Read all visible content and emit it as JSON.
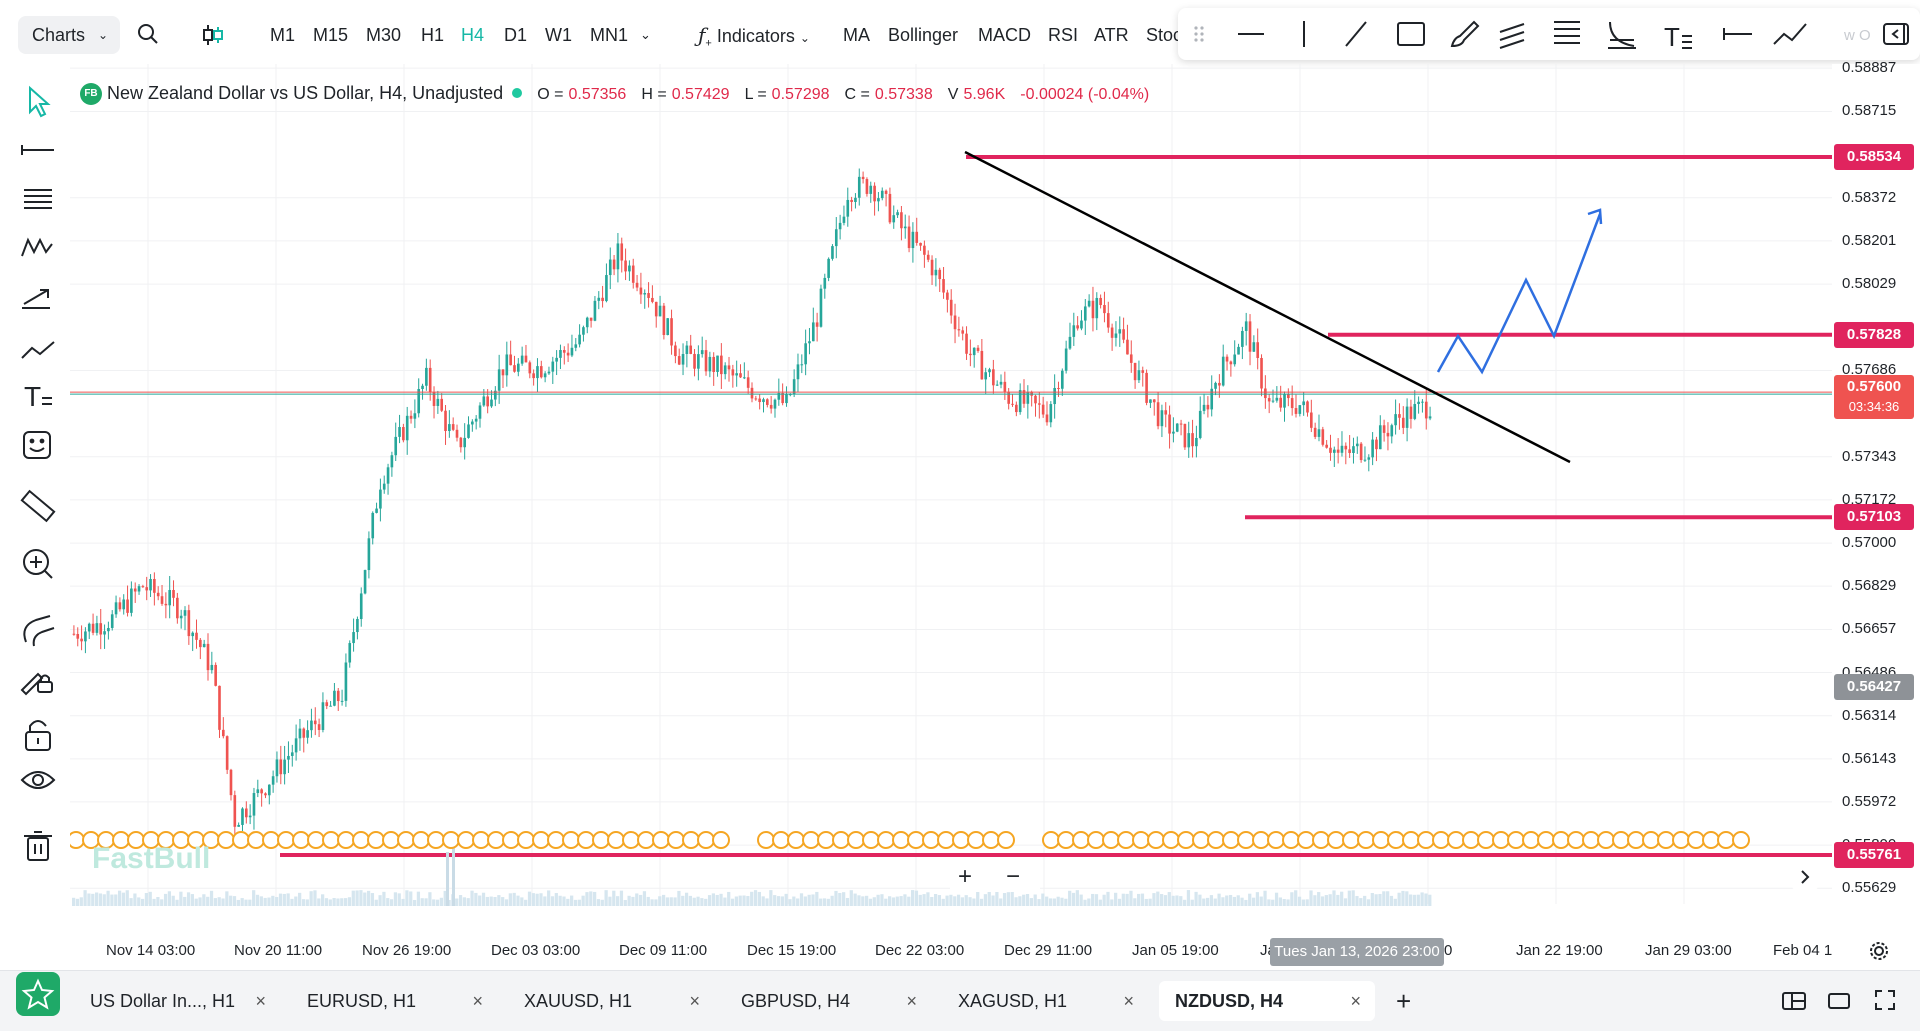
{
  "toolbar": {
    "charts_label": "Charts",
    "timeframes": [
      "M1",
      "M15",
      "M30",
      "H1",
      "H4",
      "D1",
      "W1",
      "MN1"
    ],
    "active_timeframe": "H4",
    "indicators_label": "Indicators",
    "indicator_shortcuts": [
      "MA",
      "Bollinger",
      "MACD",
      "RSI",
      "ATR",
      "Stoc"
    ],
    "drawbar_hidden_text": "w O"
  },
  "legend": {
    "badge": "FB",
    "title": "New Zealand Dollar vs US Dollar, H4, Unadjusted",
    "open_label": "O =",
    "open": "0.57356",
    "high_label": "H =",
    "high": "0.57429",
    "low_label": "L =",
    "low": "0.57298",
    "close_label": "C =",
    "close": "0.57338",
    "volume_label": "V",
    "volume": "5.96K",
    "change": "-0.00024 (-0.04%)"
  },
  "price_axis": {
    "labels": [
      "0.58887",
      "0.58715",
      "0.58372",
      "0.58201",
      "0.58029",
      "0.57686",
      "0.57343",
      "0.57172",
      "0.57000",
      "0.56829",
      "0.56657",
      "0.56486",
      "0.56314",
      "0.56143",
      "0.55972",
      "0.55800",
      "0.55629"
    ],
    "tags": [
      {
        "value": "0.58534",
        "color": "#e0245e"
      },
      {
        "value": "0.57828",
        "color": "#e0245e"
      },
      {
        "value": "0.57600",
        "sub": "03:34:36",
        "color": "#ef5350"
      },
      {
        "value": "0.57103",
        "color": "#e0245e"
      },
      {
        "value": "0.56427",
        "color": "#8e9297"
      },
      {
        "value": "0.55761",
        "color": "#e0245e"
      }
    ]
  },
  "time_axis": {
    "labels": [
      "Nov 14 03:00",
      "Nov 20 11:00",
      "Nov 26 19:00",
      "Dec 03 03:00",
      "Dec 09 11:00",
      "Dec 15 19:00",
      "Dec 22 03:00",
      "Dec 29 11:00",
      "Jan 05 19:00",
      "Ja",
      "Jan 22 19:00",
      "Jan 29 03:00",
      "Feb 04 1"
    ],
    "crosshair_time": "Tues Jan 13, 2026 23:00",
    "crosshair_suffix": "0"
  },
  "watermark": "FastBull",
  "zoom": {
    "plus": "+",
    "minus": "−"
  },
  "horizontal_levels": [
    0.58534,
    0.57828,
    0.57103,
    0.55761
  ],
  "current_price_line": 0.576,
  "tabs": [
    {
      "label": "US Dollar In..., H1",
      "active": false
    },
    {
      "label": "EURUSD, H1",
      "active": false
    },
    {
      "label": "XAUUSD, H1",
      "active": false
    },
    {
      "label": "GBPUSD, H4",
      "active": false
    },
    {
      "label": "XAGUSD, H1",
      "active": false
    },
    {
      "label": "NZDUSD, H4",
      "active": true
    }
  ],
  "tab_close": "×",
  "tab_add": "+",
  "colors": {
    "up": "#26a69a",
    "down": "#ef5350",
    "level": "#e0245e",
    "trend": "#000000",
    "projection": "#2f6fe0",
    "accent": "#16b8a6"
  },
  "icons": [
    "search-icon",
    "candle-type-icon",
    "cursor-icon",
    "horizontal-line-icon",
    "fib-icon",
    "pattern-icon",
    "forecast-icon",
    "trend-icon",
    "text-icon",
    "emoji-icon",
    "ruler-icon",
    "zoom-icon",
    "magnet-icon",
    "draw-lock-icon",
    "lock-icon",
    "eye-icon",
    "trash-icon",
    "star-icon",
    "settings-icon",
    "layout-icon",
    "window-icon",
    "fullscreen-icon"
  ]
}
